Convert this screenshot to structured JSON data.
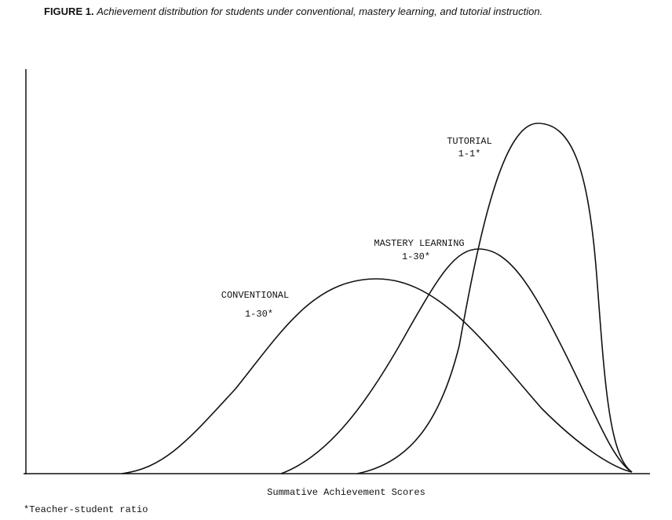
{
  "figure": {
    "label": "FIGURE 1.",
    "caption": "Achievement distribution for students under conventional, mastery learning, and tutorial instruction.",
    "curves": [
      {
        "name": "TUTORIAL",
        "ratio": "1-1*"
      },
      {
        "name": "MASTERY LEARNING",
        "ratio": "1-30*"
      },
      {
        "name": "CONVENTIONAL",
        "ratio": "1-30*"
      }
    ],
    "x_axis_label": "Summative Achievement Scores",
    "footnote": "*Teacher-student ratio"
  }
}
